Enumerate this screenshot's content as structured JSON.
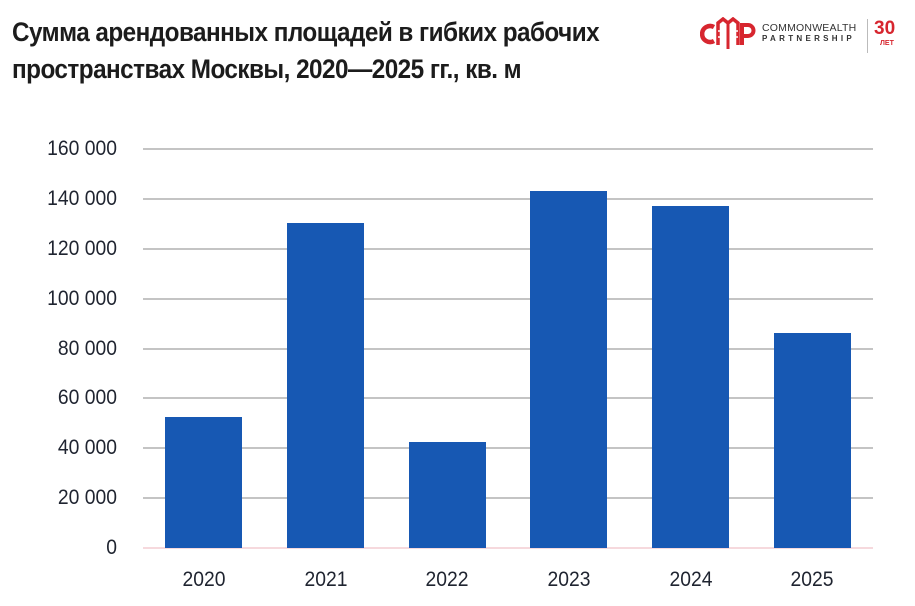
{
  "header": {
    "title_line1": "Сумма арендованных площадей в гибких рабочих",
    "title_line2": "пространствах Москвы, 2020—2025 гг., кв. м"
  },
  "logo": {
    "mark": "CMP",
    "name_line1": "COMMONWEALTH",
    "name_line2": "PARTNERSHIP",
    "anniversary_number": "30",
    "anniversary_label": "ЛЕТ",
    "brand_color": "#d7262f"
  },
  "chart_data": {
    "type": "bar",
    "title": "Сумма арендованных площадей в гибких рабочих пространствах Москвы, 2020—2025 гг., кв. м",
    "xlabel": "",
    "ylabel": "",
    "categories": [
      "2020",
      "2021",
      "2022",
      "2023",
      "2024",
      "2025"
    ],
    "values": [
      52400,
      130400,
      42400,
      143200,
      137200,
      86100
    ],
    "ylim": [
      0,
      160000
    ],
    "yticks": [
      0,
      20000,
      40000,
      60000,
      80000,
      100000,
      120000,
      140000,
      160000
    ],
    "ytick_labels": [
      "0",
      "20 000",
      "40 000",
      "60 000",
      "80 000",
      "100 000",
      "120 000",
      "140 000",
      "160 000"
    ],
    "grid": true,
    "legend": null,
    "bar_color": "#1758b3",
    "grid_color": "#c4c4c4"
  }
}
